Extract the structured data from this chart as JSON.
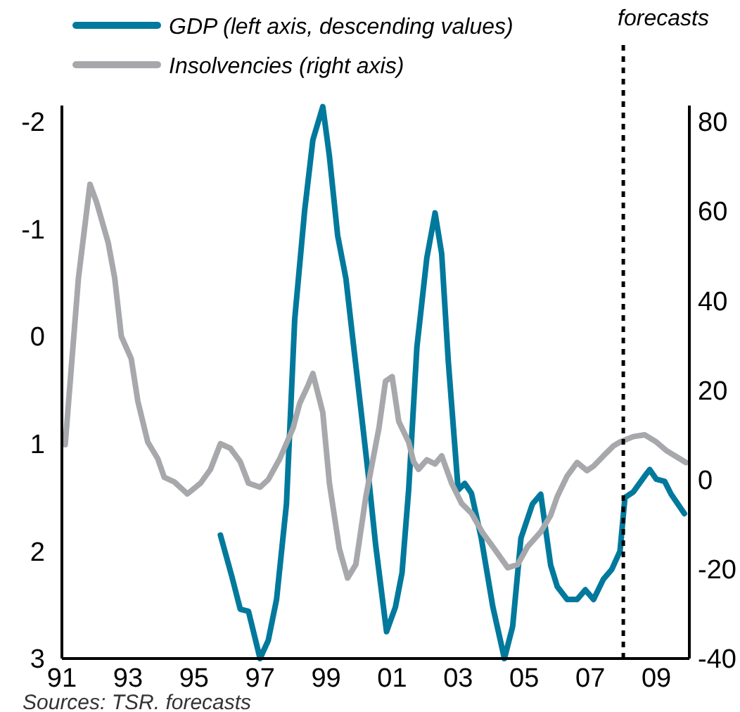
{
  "chart_data": {
    "type": "line",
    "legend": "top left",
    "grid": false,
    "xlim": [
      1991,
      2010
    ],
    "xticks": [
      {
        "value": 1991,
        "label": "91"
      },
      {
        "value": 1993,
        "label": "93"
      },
      {
        "value": 1995,
        "label": "95"
      },
      {
        "value": 1997,
        "label": "97"
      },
      {
        "value": 1999,
        "label": "99"
      },
      {
        "value": 2001,
        "label": "01"
      },
      {
        "value": 2003,
        "label": "03"
      },
      {
        "value": 2005,
        "label": "05"
      },
      {
        "value": 2007,
        "label": "07"
      },
      {
        "value": 2009,
        "label": "09"
      }
    ],
    "ylim": [
      3,
      -2.15
    ],
    "yticks": [
      -2,
      -1,
      0,
      1,
      2,
      3
    ],
    "y2lim": [
      -40,
      83.6
    ],
    "y2ticks": [
      -40,
      -20,
      0,
      20,
      40,
      60,
      80
    ],
    "ref_lines": [
      {
        "axis": "x",
        "value": 2008,
        "label": "forecasts",
        "color": "#000000",
        "line_style": "dashed"
      }
    ],
    "annotations": [
      "Sources: TSR. forecasts"
    ],
    "series": [
      {
        "name": "GDP (left axis, descending values)",
        "color": "#00799c",
        "x": [
          1995.8,
          1996.15,
          1996.4,
          1996.65,
          1997.0,
          1997.25,
          1997.5,
          1997.8,
          1998.05,
          1998.35,
          1998.6,
          1998.9,
          1999.1,
          1999.35,
          1999.6,
          1999.8,
          2000.05,
          2000.3,
          2000.5,
          2000.83,
          2001.1,
          2001.3,
          2001.5,
          2001.75,
          2002.05,
          2002.3,
          2002.5,
          2002.7,
          2003.0,
          2003.2,
          2003.4,
          2003.7,
          2004.05,
          2004.4,
          2004.65,
          2004.9,
          2005.25,
          2005.5,
          2005.8,
          2006.0,
          2006.3,
          2006.6,
          2006.85,
          2007.1,
          2007.4,
          2007.65,
          2007.9,
          2008.05,
          2008.3,
          2008.65,
          2008.8,
          2009.0,
          2009.25,
          2009.45,
          2009.85
        ],
        "values": [
          1.85,
          2.24,
          2.54,
          2.56,
          3.0,
          2.83,
          2.45,
          1.56,
          -0.16,
          -1.17,
          -1.83,
          -2.14,
          -1.68,
          -0.94,
          -0.54,
          0,
          0.67,
          1.35,
          1.94,
          2.75,
          2.52,
          2.2,
          1.43,
          0.1,
          -0.73,
          -1.15,
          -0.77,
          0.23,
          1.43,
          1.37,
          1.46,
          1.88,
          2.52,
          3.0,
          2.7,
          1.88,
          1.56,
          1.47,
          2.13,
          2.33,
          2.45,
          2.45,
          2.36,
          2.45,
          2.26,
          2.17,
          2.0,
          1.5,
          1.45,
          1.3,
          1.24,
          1.33,
          1.35,
          1.47,
          1.65
        ]
      },
      {
        "name": "Insolvencies (right axis)",
        "color": "#a7a8ab",
        "axis": "y2",
        "x": [
          1991.1,
          1991.5,
          1991.85,
          1992.05,
          1992.4,
          1992.6,
          1992.8,
          1993.1,
          1993.3,
          1993.6,
          1993.9,
          1994.1,
          1994.4,
          1994.8,
          1995.2,
          1995.5,
          1995.8,
          1996.1,
          1996.4,
          1996.65,
          1997.0,
          1997.25,
          1997.6,
          1998.0,
          1998.2,
          1998.45,
          1998.6,
          1998.9,
          1999.1,
          1999.4,
          1999.65,
          1999.9,
          2000.2,
          2000.6,
          2000.8,
          2001.0,
          2001.2,
          2001.5,
          2001.65,
          2001.8,
          2002.05,
          2002.3,
          2002.5,
          2002.8,
          2003.1,
          2003.4,
          2003.75,
          2004.0,
          2004.3,
          2004.5,
          2004.8,
          2005.1,
          2005.5,
          2005.8,
          2006.0,
          2006.3,
          2006.6,
          2006.9,
          2007.1,
          2007.4,
          2007.7,
          2007.9,
          2008.3,
          2008.65,
          2009.0,
          2009.3,
          2009.7,
          2009.9
        ],
        "values": [
          7.8,
          45,
          66,
          62,
          53,
          45,
          32,
          27,
          17.5,
          8.4,
          4.7,
          0.5,
          -0.5,
          -3.2,
          -0.8,
          2.3,
          8,
          7,
          4,
          -0.8,
          -1.7,
          0,
          4.7,
          11.5,
          17,
          21,
          23.7,
          15,
          -0.8,
          -15.4,
          -22,
          -19,
          -4,
          11.5,
          22,
          23,
          13,
          8.4,
          4,
          2.3,
          4.4,
          3.5,
          5.3,
          -0.8,
          -5.3,
          -7.5,
          -12,
          -14.5,
          -17.6,
          -19.7,
          -19,
          -15,
          -11.7,
          -8,
          -3.8,
          0.8,
          3.8,
          2,
          3,
          5.3,
          7.5,
          8.4,
          9.6,
          10,
          8.4,
          6.5,
          4.7,
          3.8
        ]
      }
    ]
  }
}
